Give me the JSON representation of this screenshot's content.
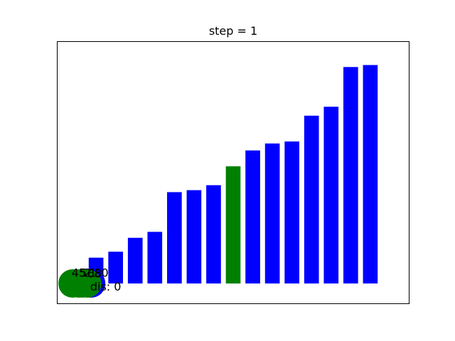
{
  "chart_data": {
    "type": "bar",
    "title": "step = 1",
    "xlabel": "",
    "ylabel": "",
    "axes_visible": false,
    "xlim": [
      -2,
      16
    ],
    "ylim": [
      -1,
      12.2
    ],
    "values": [
      1.3,
      1.6,
      2.3,
      2.6,
      4.6,
      4.7,
      4.95,
      5.9,
      6.7,
      7.05,
      7.15,
      8.45,
      8.9,
      10.9,
      11.0
    ],
    "bar_colors": [
      "#0000ff",
      "#0000ff",
      "#0000ff",
      "#0000ff",
      "#0000ff",
      "#0000ff",
      "#0000ff",
      "#008000",
      "#0000ff",
      "#0000ff",
      "#0000ff",
      "#0000ff",
      "#0000ff",
      "#0000ff",
      "#0000ff"
    ],
    "markers": [
      {
        "x": -1.2,
        "y": 0,
        "color": "#008000"
      },
      {
        "x": -0.9,
        "y": 0,
        "color": "#008000"
      },
      {
        "x": -0.25,
        "y": 0,
        "color": "#0000ff"
      },
      {
        "x": -0.45,
        "y": 0,
        "color": "#008000"
      },
      {
        "x": -0.7,
        "y": 0,
        "color": "#008000"
      }
    ],
    "annotations": {
      "numbers": [
        {
          "text": "45",
          "x": -1.25,
          "y": 0.35
        },
        {
          "text": "5",
          "x": -0.85,
          "y": 0.35
        },
        {
          "text": "2",
          "x": -0.62,
          "y": 0.35
        },
        {
          "text": "68",
          "x": -0.45,
          "y": 0.3
        },
        {
          "text": "80",
          "x": -0.1,
          "y": 0.35
        },
        {
          "text": "1",
          "x": -0.35,
          "y": 0.35
        }
      ],
      "dis": {
        "text": "dis: 0",
        "x": -0.3,
        "y": -0.35
      }
    }
  }
}
